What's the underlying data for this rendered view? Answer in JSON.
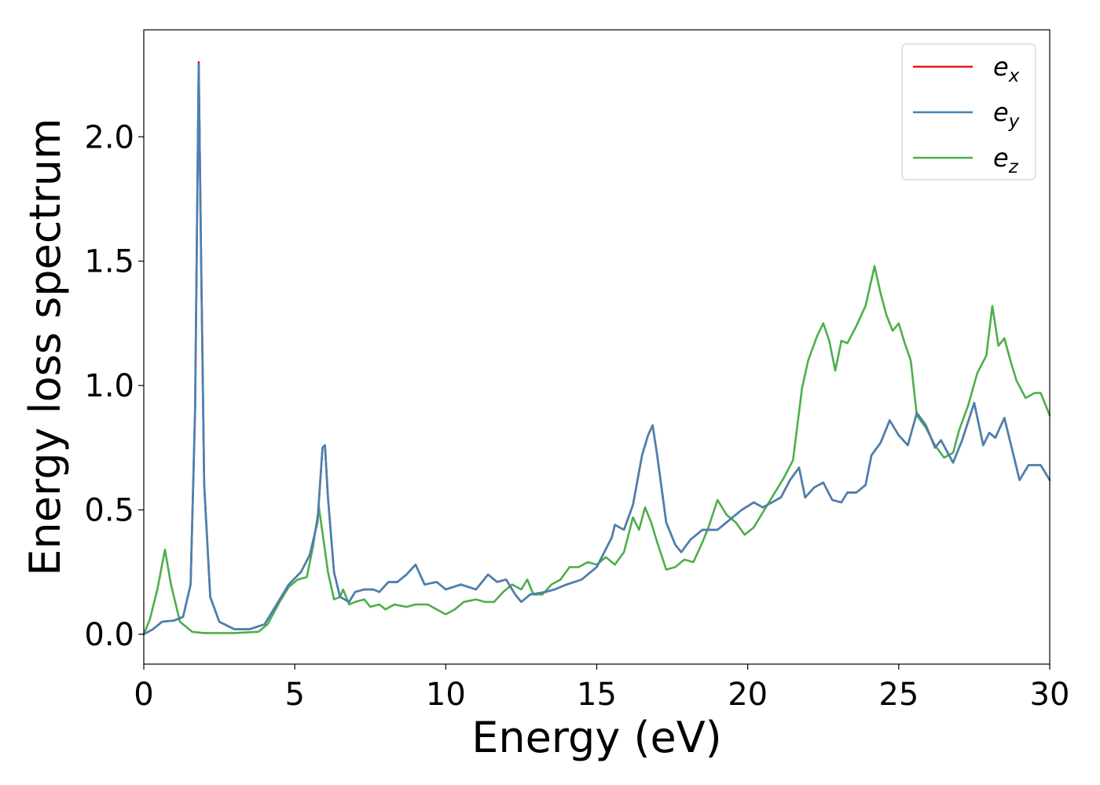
{
  "chart_data": {
    "type": "line",
    "xlabel": "Energy (eV)",
    "ylabel": "Energy loss spectrum",
    "xlim": [
      0,
      30
    ],
    "ylim": [
      -0.12,
      2.43
    ],
    "x_ticks": [
      0,
      5,
      10,
      15,
      20,
      25,
      30
    ],
    "x_tick_labels": [
      "0",
      "5",
      "10",
      "15",
      "20",
      "25",
      "30"
    ],
    "y_ticks": [
      0.0,
      0.5,
      1.0,
      1.5,
      2.0
    ],
    "y_tick_labels": [
      "0.0",
      "0.5",
      "1.0",
      "1.5",
      "2.0"
    ],
    "grid": false,
    "legend_position": "top-right",
    "series": [
      {
        "name": "e_x",
        "legend_base": "e",
        "legend_sub": "x",
        "color": "#e41a1c",
        "points": [
          [
            0,
            0
          ],
          [
            0.3,
            0.02
          ],
          [
            0.6,
            0.05
          ],
          [
            1.0,
            0.055
          ],
          [
            1.3,
            0.07
          ],
          [
            1.55,
            0.2
          ],
          [
            1.7,
            0.9
          ],
          [
            1.82,
            2.3
          ],
          [
            1.9,
            1.5
          ],
          [
            2.0,
            0.6
          ],
          [
            2.2,
            0.15
          ],
          [
            2.5,
            0.05
          ],
          [
            3.0,
            0.02
          ],
          [
            3.5,
            0.02
          ],
          [
            4.0,
            0.04
          ],
          [
            4.4,
            0.12
          ],
          [
            4.8,
            0.2
          ],
          [
            5.2,
            0.25
          ],
          [
            5.5,
            0.32
          ],
          [
            5.75,
            0.45
          ],
          [
            5.92,
            0.75
          ],
          [
            6.0,
            0.76
          ],
          [
            6.1,
            0.55
          ],
          [
            6.3,
            0.25
          ],
          [
            6.5,
            0.15
          ],
          [
            6.8,
            0.13
          ],
          [
            7.0,
            0.17
          ],
          [
            7.3,
            0.18
          ],
          [
            7.6,
            0.18
          ],
          [
            7.8,
            0.17
          ],
          [
            8.1,
            0.21
          ],
          [
            8.4,
            0.21
          ],
          [
            8.7,
            0.24
          ],
          [
            9.0,
            0.28
          ],
          [
            9.3,
            0.2
          ],
          [
            9.7,
            0.21
          ],
          [
            10.0,
            0.18
          ],
          [
            10.5,
            0.2
          ],
          [
            11.0,
            0.18
          ],
          [
            11.4,
            0.24
          ],
          [
            11.7,
            0.21
          ],
          [
            12.0,
            0.22
          ],
          [
            12.3,
            0.16
          ],
          [
            12.5,
            0.13
          ],
          [
            12.8,
            0.16
          ],
          [
            13.3,
            0.17
          ],
          [
            13.6,
            0.18
          ],
          [
            14.0,
            0.2
          ],
          [
            14.5,
            0.22
          ],
          [
            15.0,
            0.27
          ],
          [
            15.5,
            0.39
          ],
          [
            15.6,
            0.44
          ],
          [
            15.9,
            0.42
          ],
          [
            16.2,
            0.52
          ],
          [
            16.5,
            0.72
          ],
          [
            16.7,
            0.8
          ],
          [
            16.85,
            0.84
          ],
          [
            17.0,
            0.72
          ],
          [
            17.3,
            0.45
          ],
          [
            17.6,
            0.36
          ],
          [
            17.8,
            0.33
          ],
          [
            18.1,
            0.38
          ],
          [
            18.5,
            0.42
          ],
          [
            19.0,
            0.42
          ],
          [
            19.3,
            0.45
          ],
          [
            19.8,
            0.5
          ],
          [
            20.2,
            0.53
          ],
          [
            20.5,
            0.51
          ],
          [
            20.8,
            0.53
          ],
          [
            21.1,
            0.55
          ],
          [
            21.4,
            0.62
          ],
          [
            21.7,
            0.67
          ],
          [
            21.9,
            0.55
          ],
          [
            22.2,
            0.59
          ],
          [
            22.5,
            0.61
          ],
          [
            22.8,
            0.54
          ],
          [
            23.1,
            0.53
          ],
          [
            23.3,
            0.57
          ],
          [
            23.6,
            0.57
          ],
          [
            23.9,
            0.6
          ],
          [
            24.1,
            0.72
          ],
          [
            24.4,
            0.77
          ],
          [
            24.7,
            0.86
          ],
          [
            25.0,
            0.8
          ],
          [
            25.3,
            0.76
          ],
          [
            25.6,
            0.89
          ],
          [
            25.9,
            0.84
          ],
          [
            26.2,
            0.75
          ],
          [
            26.4,
            0.78
          ],
          [
            26.8,
            0.69
          ],
          [
            27.1,
            0.78
          ],
          [
            27.5,
            0.93
          ],
          [
            27.8,
            0.76
          ],
          [
            28.0,
            0.81
          ],
          [
            28.2,
            0.79
          ],
          [
            28.5,
            0.87
          ],
          [
            28.8,
            0.72
          ],
          [
            29.0,
            0.62
          ],
          [
            29.3,
            0.68
          ],
          [
            29.7,
            0.68
          ],
          [
            30.0,
            0.62
          ]
        ]
      },
      {
        "name": "e_y",
        "legend_base": "e",
        "legend_sub": "y",
        "color": "#4682b4",
        "points": [
          [
            0,
            0
          ],
          [
            0.3,
            0.02
          ],
          [
            0.6,
            0.05
          ],
          [
            1.0,
            0.055
          ],
          [
            1.3,
            0.07
          ],
          [
            1.55,
            0.2
          ],
          [
            1.7,
            0.9
          ],
          [
            1.82,
            2.29
          ],
          [
            1.9,
            1.5
          ],
          [
            2.0,
            0.6
          ],
          [
            2.2,
            0.15
          ],
          [
            2.5,
            0.05
          ],
          [
            3.0,
            0.02
          ],
          [
            3.5,
            0.02
          ],
          [
            4.0,
            0.04
          ],
          [
            4.4,
            0.12
          ],
          [
            4.8,
            0.2
          ],
          [
            5.2,
            0.25
          ],
          [
            5.5,
            0.32
          ],
          [
            5.75,
            0.45
          ],
          [
            5.92,
            0.75
          ],
          [
            6.0,
            0.76
          ],
          [
            6.1,
            0.55
          ],
          [
            6.3,
            0.25
          ],
          [
            6.5,
            0.15
          ],
          [
            6.8,
            0.13
          ],
          [
            7.0,
            0.17
          ],
          [
            7.3,
            0.18
          ],
          [
            7.6,
            0.18
          ],
          [
            7.8,
            0.17
          ],
          [
            8.1,
            0.21
          ],
          [
            8.4,
            0.21
          ],
          [
            8.7,
            0.24
          ],
          [
            9.0,
            0.28
          ],
          [
            9.3,
            0.2
          ],
          [
            9.7,
            0.21
          ],
          [
            10.0,
            0.18
          ],
          [
            10.5,
            0.2
          ],
          [
            11.0,
            0.18
          ],
          [
            11.4,
            0.24
          ],
          [
            11.7,
            0.21
          ],
          [
            12.0,
            0.22
          ],
          [
            12.3,
            0.16
          ],
          [
            12.5,
            0.13
          ],
          [
            12.8,
            0.16
          ],
          [
            13.3,
            0.17
          ],
          [
            13.6,
            0.18
          ],
          [
            14.0,
            0.2
          ],
          [
            14.5,
            0.22
          ],
          [
            15.0,
            0.27
          ],
          [
            15.5,
            0.39
          ],
          [
            15.6,
            0.44
          ],
          [
            15.9,
            0.42
          ],
          [
            16.2,
            0.52
          ],
          [
            16.5,
            0.72
          ],
          [
            16.7,
            0.8
          ],
          [
            16.85,
            0.84
          ],
          [
            17.0,
            0.72
          ],
          [
            17.3,
            0.45
          ],
          [
            17.6,
            0.36
          ],
          [
            17.8,
            0.33
          ],
          [
            18.1,
            0.38
          ],
          [
            18.5,
            0.42
          ],
          [
            19.0,
            0.42
          ],
          [
            19.3,
            0.45
          ],
          [
            19.8,
            0.5
          ],
          [
            20.2,
            0.53
          ],
          [
            20.5,
            0.51
          ],
          [
            20.8,
            0.53
          ],
          [
            21.1,
            0.55
          ],
          [
            21.4,
            0.62
          ],
          [
            21.7,
            0.67
          ],
          [
            21.9,
            0.55
          ],
          [
            22.2,
            0.59
          ],
          [
            22.5,
            0.61
          ],
          [
            22.8,
            0.54
          ],
          [
            23.1,
            0.53
          ],
          [
            23.3,
            0.57
          ],
          [
            23.6,
            0.57
          ],
          [
            23.9,
            0.6
          ],
          [
            24.1,
            0.72
          ],
          [
            24.4,
            0.77
          ],
          [
            24.7,
            0.86
          ],
          [
            25.0,
            0.8
          ],
          [
            25.3,
            0.76
          ],
          [
            25.6,
            0.89
          ],
          [
            25.9,
            0.84
          ],
          [
            26.2,
            0.75
          ],
          [
            26.4,
            0.78
          ],
          [
            26.8,
            0.69
          ],
          [
            27.1,
            0.78
          ],
          [
            27.5,
            0.93
          ],
          [
            27.8,
            0.76
          ],
          [
            28.0,
            0.81
          ],
          [
            28.2,
            0.79
          ],
          [
            28.5,
            0.87
          ],
          [
            28.8,
            0.72
          ],
          [
            29.0,
            0.62
          ],
          [
            29.3,
            0.68
          ],
          [
            29.7,
            0.68
          ],
          [
            30.0,
            0.62
          ]
        ]
      },
      {
        "name": "e_z",
        "legend_base": "e",
        "legend_sub": "z",
        "color": "#4daf4a",
        "points": [
          [
            0,
            0
          ],
          [
            0.2,
            0.06
          ],
          [
            0.45,
            0.18
          ],
          [
            0.7,
            0.34
          ],
          [
            0.9,
            0.2
          ],
          [
            1.2,
            0.05
          ],
          [
            1.6,
            0.01
          ],
          [
            2.0,
            0.005
          ],
          [
            3.0,
            0.005
          ],
          [
            3.8,
            0.01
          ],
          [
            4.1,
            0.04
          ],
          [
            4.5,
            0.13
          ],
          [
            4.8,
            0.19
          ],
          [
            5.1,
            0.22
          ],
          [
            5.4,
            0.23
          ],
          [
            5.6,
            0.35
          ],
          [
            5.8,
            0.51
          ],
          [
            5.95,
            0.38
          ],
          [
            6.1,
            0.25
          ],
          [
            6.3,
            0.14
          ],
          [
            6.5,
            0.15
          ],
          [
            6.6,
            0.18
          ],
          [
            6.8,
            0.12
          ],
          [
            7.0,
            0.13
          ],
          [
            7.3,
            0.14
          ],
          [
            7.5,
            0.11
          ],
          [
            7.8,
            0.12
          ],
          [
            8.0,
            0.1
          ],
          [
            8.3,
            0.12
          ],
          [
            8.7,
            0.11
          ],
          [
            9.0,
            0.12
          ],
          [
            9.4,
            0.12
          ],
          [
            9.7,
            0.1
          ],
          [
            10.0,
            0.08
          ],
          [
            10.3,
            0.1
          ],
          [
            10.6,
            0.13
          ],
          [
            11.0,
            0.14
          ],
          [
            11.3,
            0.13
          ],
          [
            11.6,
            0.13
          ],
          [
            11.9,
            0.17
          ],
          [
            12.2,
            0.2
          ],
          [
            12.5,
            0.18
          ],
          [
            12.7,
            0.22
          ],
          [
            12.9,
            0.16
          ],
          [
            13.2,
            0.16
          ],
          [
            13.5,
            0.2
          ],
          [
            13.8,
            0.22
          ],
          [
            14.1,
            0.27
          ],
          [
            14.4,
            0.27
          ],
          [
            14.7,
            0.29
          ],
          [
            15.0,
            0.28
          ],
          [
            15.3,
            0.31
          ],
          [
            15.6,
            0.28
          ],
          [
            15.9,
            0.33
          ],
          [
            16.2,
            0.47
          ],
          [
            16.4,
            0.42
          ],
          [
            16.6,
            0.51
          ],
          [
            16.8,
            0.45
          ],
          [
            17.0,
            0.37
          ],
          [
            17.3,
            0.26
          ],
          [
            17.6,
            0.27
          ],
          [
            17.9,
            0.3
          ],
          [
            18.2,
            0.29
          ],
          [
            18.5,
            0.37
          ],
          [
            18.7,
            0.43
          ],
          [
            19.0,
            0.54
          ],
          [
            19.3,
            0.48
          ],
          [
            19.6,
            0.45
          ],
          [
            19.9,
            0.4
          ],
          [
            20.2,
            0.43
          ],
          [
            20.5,
            0.49
          ],
          [
            20.8,
            0.55
          ],
          [
            21.2,
            0.63
          ],
          [
            21.5,
            0.7
          ],
          [
            21.8,
            0.99
          ],
          [
            22.0,
            1.1
          ],
          [
            22.3,
            1.2
          ],
          [
            22.5,
            1.25
          ],
          [
            22.7,
            1.18
          ],
          [
            22.9,
            1.06
          ],
          [
            23.1,
            1.18
          ],
          [
            23.3,
            1.17
          ],
          [
            23.6,
            1.24
          ],
          [
            23.9,
            1.32
          ],
          [
            24.2,
            1.48
          ],
          [
            24.4,
            1.37
          ],
          [
            24.6,
            1.28
          ],
          [
            24.8,
            1.22
          ],
          [
            25.0,
            1.25
          ],
          [
            25.2,
            1.17
          ],
          [
            25.4,
            1.1
          ],
          [
            25.6,
            0.88
          ],
          [
            25.9,
            0.83
          ],
          [
            26.2,
            0.76
          ],
          [
            26.5,
            0.71
          ],
          [
            26.8,
            0.73
          ],
          [
            27.0,
            0.82
          ],
          [
            27.3,
            0.92
          ],
          [
            27.6,
            1.05
          ],
          [
            27.9,
            1.12
          ],
          [
            28.1,
            1.32
          ],
          [
            28.3,
            1.16
          ],
          [
            28.5,
            1.19
          ],
          [
            28.7,
            1.1
          ],
          [
            28.9,
            1.02
          ],
          [
            29.2,
            0.95
          ],
          [
            29.5,
            0.97
          ],
          [
            29.7,
            0.97
          ],
          [
            30.0,
            0.88
          ]
        ]
      }
    ]
  }
}
